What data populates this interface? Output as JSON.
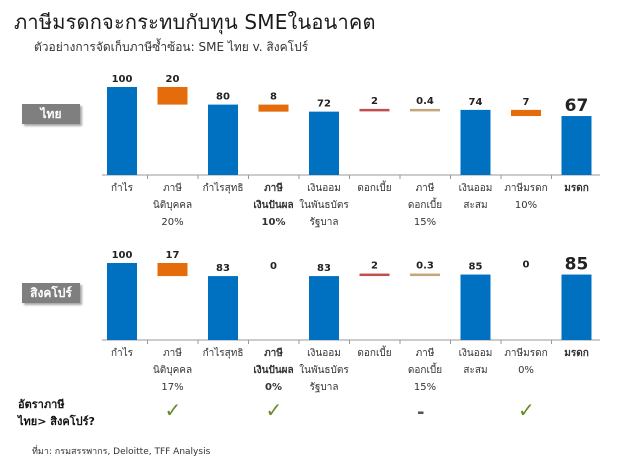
{
  "title": "ภาษีมรดกจะกระทบกับทุน SMEในอนาคต",
  "subtitle": "ตัวอย่างการจัดเก็บภาษีซ้ำซ้อน: SME ไทย v. สิงคโปร์",
  "colors": {
    "blue": "#0070C0",
    "orange": "#E46C0A",
    "red": "#C0504D",
    "tan": "#C4A67A",
    "axis": "#999999",
    "label_bg": "#7F7F7F"
  },
  "chart_data": [
    {
      "type": "bar",
      "panel": "ไทย",
      "categories": [
        [
          "กำไร"
        ],
        [
          "ภาษี",
          "นิติบุคคล",
          "20%"
        ],
        [
          "กำไรสุทธิ"
        ],
        [
          "ภาษี",
          "เงินปันผล",
          "10%"
        ],
        [
          "เงินออม",
          "ในพันธบัตร",
          "รัฐบาล"
        ],
        [
          "ดอกเบี้ย"
        ],
        [
          "ภาษี",
          "ดอกเบี้ย",
          "15%"
        ],
        [
          "เงินออม",
          "สะสม"
        ],
        [
          "ภาษีมรดก",
          "10%"
        ],
        [
          "มรดก"
        ]
      ],
      "bold_categories": [
        3,
        9
      ],
      "value_labels": [
        "100",
        "20",
        "80",
        "8",
        "72",
        "2",
        "0.4",
        "74",
        "7",
        "67"
      ],
      "values": [
        100,
        20,
        80,
        8,
        72,
        2,
        0.4,
        74,
        7,
        67
      ],
      "kind": [
        "total",
        "dec",
        "total",
        "dec",
        "total",
        "inc",
        "dec",
        "total",
        "dec",
        "total"
      ],
      "colors": [
        "blue",
        "orange",
        "blue",
        "orange",
        "blue",
        "red",
        "tan",
        "blue",
        "orange",
        "blue"
      ]
    },
    {
      "type": "bar",
      "panel": "สิงคโปร์",
      "categories": [
        [
          "กำไร"
        ],
        [
          "ภาษี",
          "นิติบุคคล",
          "17%"
        ],
        [
          "กำไรสุทธิ"
        ],
        [
          "ภาษี",
          "เงินปันผล",
          "0%"
        ],
        [
          "เงินออม",
          "ในพันธบัตร",
          "รัฐบาล"
        ],
        [
          "ดอกเบี้ย"
        ],
        [
          "ภาษี",
          "ดอกเบี้ย",
          "15%"
        ],
        [
          "เงินออม",
          "สะสม"
        ],
        [
          "ภาษีมรดก",
          "0%"
        ],
        [
          "มรดก"
        ]
      ],
      "bold_categories": [
        3,
        9
      ],
      "value_labels": [
        "100",
        "17",
        "83",
        "0",
        "83",
        "2",
        "0.3",
        "85",
        "0",
        "85"
      ],
      "values": [
        100,
        17,
        83,
        0,
        83,
        2,
        0.3,
        85,
        0,
        85
      ],
      "kind": [
        "total",
        "dec",
        "total",
        "dec",
        "total",
        "inc",
        "dec",
        "total",
        "dec",
        "total"
      ],
      "colors": [
        "blue",
        "orange",
        "blue",
        "orange",
        "blue",
        "red",
        "tan",
        "blue",
        "orange",
        "blue"
      ]
    }
  ],
  "comparison": {
    "label_line1": "อัตราภาษี",
    "label_line2": "ไทย> สิงคโปร์?",
    "marks": [
      {
        "col": 1,
        "symbol": "✓"
      },
      {
        "col": 3,
        "symbol": "✓"
      },
      {
        "col": 6,
        "symbol": "-"
      },
      {
        "col": 8,
        "symbol": "✓"
      }
    ]
  },
  "source": "ที่มา: กรมสรรพากร, Deloitte, TFF Analysis"
}
